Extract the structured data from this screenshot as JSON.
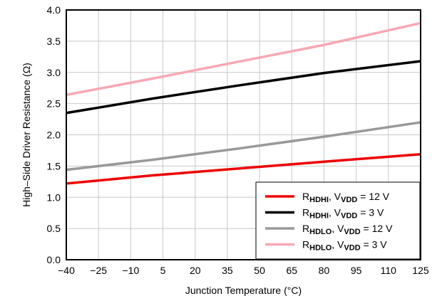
{
  "chart_data": {
    "type": "line",
    "xlabel": "Junction Temperature (°C)",
    "ylabel": "High–Side Driver Resistance (Ω)",
    "xlim": [
      -40,
      125
    ],
    "ylim": [
      0,
      4
    ],
    "x_ticks": [
      "−40",
      "−25",
      "−10",
      "5",
      "20",
      "35",
      "50",
      "65",
      "80",
      "95",
      "110",
      "125"
    ],
    "x_tick_values": [
      -40,
      -25,
      -10,
      5,
      20,
      35,
      50,
      65,
      80,
      95,
      110,
      125
    ],
    "y_ticks": [
      "0.0",
      "0.5",
      "1.0",
      "1.5",
      "2.0",
      "2.5",
      "3.0",
      "3.5",
      "4.0"
    ],
    "y_tick_values": [
      0,
      0.5,
      1,
      1.5,
      2,
      2.5,
      3,
      3.5,
      4
    ],
    "grid": true,
    "legend_position": "bottom-right",
    "series": [
      {
        "name": "RHDHI, VVDD = 12 V",
        "label_main": "R",
        "label_sub": "HDHI",
        "label_v": ", V",
        "label_vsub": "VDD",
        "label_tail": " = 12 V",
        "color": "#ee0000",
        "x": [
          -40,
          0,
          40,
          80,
          125
        ],
        "y": [
          1.22,
          1.35,
          1.46,
          1.57,
          1.69
        ]
      },
      {
        "name": "RHDHI, VVDD = 3 V",
        "label_main": "R",
        "label_sub": "HDHI",
        "label_v": ", V",
        "label_vsub": "VDD",
        "label_tail": " = 3 V",
        "color": "#000000",
        "x": [
          -40,
          0,
          40,
          80,
          125
        ],
        "y": [
          2.35,
          2.58,
          2.79,
          2.99,
          3.18
        ]
      },
      {
        "name": "RHDLO, VVDD = 12 V",
        "label_main": "R",
        "label_sub": "HDLO",
        "label_v": ", V",
        "label_vsub": "VDD",
        "label_tail": " = 12 V",
        "color": "#999999",
        "x": [
          -40,
          0,
          40,
          80,
          125
        ],
        "y": [
          1.44,
          1.6,
          1.78,
          1.97,
          2.2
        ]
      },
      {
        "name": "RHDLO, VVDD = 3 V",
        "label_main": "R",
        "label_sub": "HDLO",
        "label_v": ", V",
        "label_vsub": "VDD",
        "label_tail": " = 3 V",
        "color": "#f7a8b4",
        "x": [
          -40,
          0,
          40,
          80,
          125
        ],
        "y": [
          2.64,
          2.9,
          3.17,
          3.44,
          3.79
        ]
      }
    ]
  }
}
